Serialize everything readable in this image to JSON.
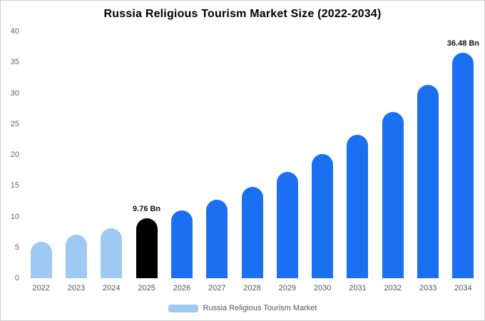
{
  "chart_data": {
    "type": "bar",
    "title": "Russia Religious Tourism Market Size (2022-2034)",
    "categories": [
      "2022",
      "2023",
      "2024",
      "2025",
      "2026",
      "2027",
      "2028",
      "2029",
      "2030",
      "2031",
      "2032",
      "2033",
      "2034"
    ],
    "values": [
      5.9,
      7.0,
      8.1,
      9.76,
      11.0,
      12.7,
      14.8,
      17.2,
      20.1,
      23.2,
      26.9,
      31.3,
      36.48
    ],
    "unit": "Bn",
    "ylim": [
      0,
      40
    ],
    "yticks": [
      0,
      5,
      10,
      15,
      20,
      25,
      30,
      35,
      40
    ],
    "grid": false,
    "legend": "Russia Religious Tourism Market",
    "legend_position": "bottom",
    "annotations": [
      {
        "index": 3,
        "text": "9.76 Bn"
      },
      {
        "index": 12,
        "text": "36.48 Bn"
      }
    ],
    "bar_colors": [
      "#9ec9f3",
      "#9ec9f3",
      "#9ec9f3",
      "#000000",
      "#1a70f0",
      "#1a70f0",
      "#1a70f0",
      "#1a70f0",
      "#1a70f0",
      "#1a70f0",
      "#1a70f0",
      "#1a70f0",
      "#1a70f0"
    ],
    "colors": {
      "historical": "#9ec9f3",
      "highlight": "#000000",
      "forecast": "#1a70f0",
      "legend_swatch": "#9ec9f3",
      "title_text": "#000000",
      "axis_text": "#666666"
    }
  }
}
